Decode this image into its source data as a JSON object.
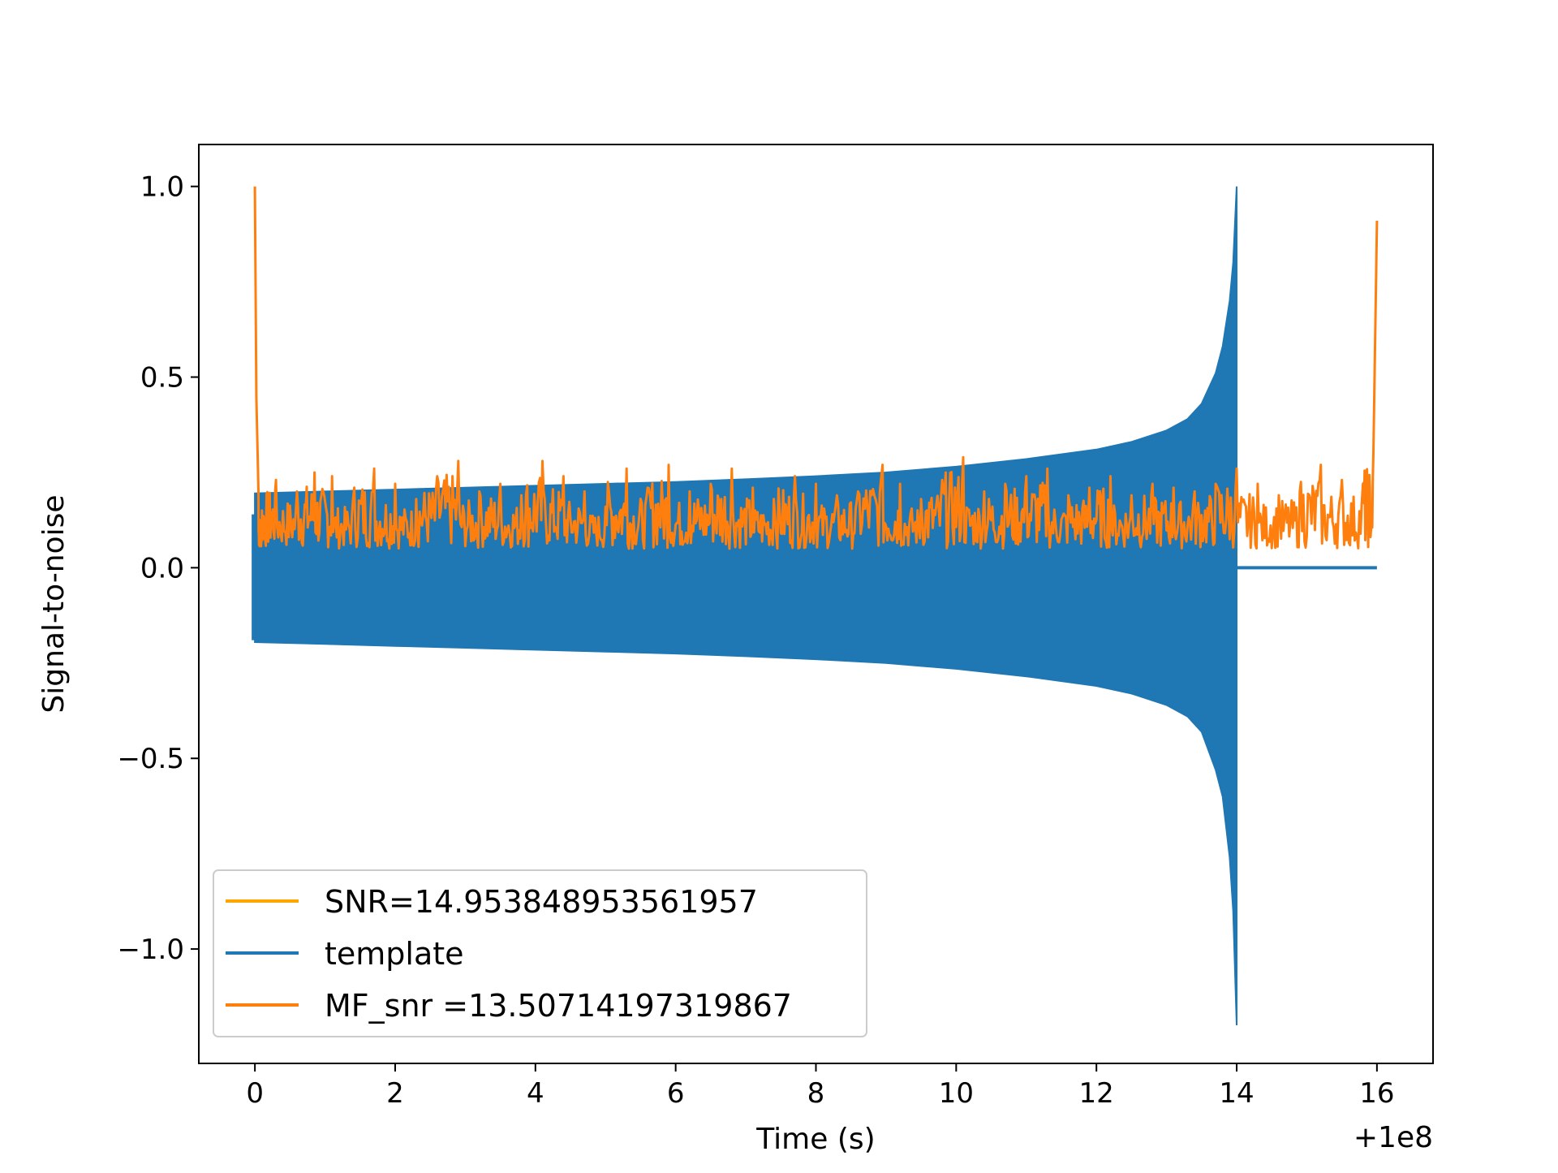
{
  "chart_data": {
    "type": "line",
    "title": "",
    "xlabel": "Time (s)",
    "ylabel": "Signal-to-noise",
    "x_offset_label": "+1e8",
    "xlim": [
      -0.8,
      16.8
    ],
    "ylim": [
      -1.3,
      1.11
    ],
    "xticks": [
      0,
      2,
      4,
      6,
      8,
      10,
      12,
      14,
      16
    ],
    "xtick_labels": [
      "0",
      "2",
      "4",
      "6",
      "8",
      "10",
      "12",
      "14",
      "16"
    ],
    "yticks": [
      1.0,
      0.5,
      0.0,
      -0.5,
      -1.0
    ],
    "ytick_labels": [
      "1.0",
      "0.5",
      "0.0",
      "−0.5",
      "−1.0"
    ],
    "grid": false,
    "legend_position": "lower-left",
    "series": [
      {
        "name": "SNR=14.953848953561957",
        "color": "#ffa500",
        "x": [],
        "y": []
      },
      {
        "name": "template",
        "color": "#1f77b4",
        "kind": "band",
        "x": [
          0.0,
          1,
          2,
          3,
          4,
          5,
          6,
          7,
          8,
          9,
          10,
          11,
          12,
          12.5,
          13,
          13.3,
          13.5,
          13.7,
          13.8,
          13.9,
          13.95,
          14.0
        ],
        "upper": [
          0.195,
          0.2,
          0.205,
          0.21,
          0.215,
          0.22,
          0.225,
          0.232,
          0.24,
          0.25,
          0.265,
          0.285,
          0.31,
          0.33,
          0.36,
          0.39,
          0.43,
          0.51,
          0.58,
          0.7,
          0.8,
          1.0
        ],
        "lower": [
          -0.195,
          -0.2,
          -0.205,
          -0.21,
          -0.215,
          -0.22,
          -0.225,
          -0.232,
          -0.24,
          -0.25,
          -0.265,
          -0.285,
          -0.31,
          -0.33,
          -0.36,
          -0.39,
          -0.43,
          -0.53,
          -0.6,
          -0.76,
          -0.9,
          -1.2
        ],
        "tail_x": [
          14.0,
          16.0
        ],
        "tail_y": [
          0.0,
          0.0
        ],
        "start_spike": [
          0.14,
          -0.19
        ]
      },
      {
        "name": " MF_snr =13.50714197319867",
        "color": "#ff7f0e",
        "x": [
          0.0,
          0.02,
          0.05,
          0.1,
          0.3,
          0.6,
          0.85,
          1.1,
          1.4,
          1.7,
          2.0,
          2.3,
          2.6,
          2.9,
          3.2,
          3.5,
          3.8,
          4.1,
          4.4,
          4.7,
          5.0,
          5.3,
          5.6,
          5.9,
          6.2,
          6.5,
          6.8,
          7.1,
          7.4,
          7.7,
          8.0,
          8.3,
          8.6,
          8.95,
          9.2,
          9.5,
          9.8,
          10.1,
          10.4,
          10.7,
          11.0,
          11.3,
          11.6,
          11.9,
          12.2,
          12.5,
          12.8,
          13.1,
          13.4,
          13.7,
          14.0,
          14.3,
          14.6,
          14.9,
          15.2,
          15.5,
          15.8,
          15.95,
          16.0
        ],
        "y": [
          1.0,
          0.45,
          0.2,
          0.15,
          0.23,
          0.2,
          0.25,
          0.24,
          0.18,
          0.26,
          0.22,
          0.18,
          0.24,
          0.28,
          0.2,
          0.22,
          0.19,
          0.28,
          0.24,
          0.2,
          0.16,
          0.26,
          0.21,
          0.27,
          0.2,
          0.22,
          0.26,
          0.21,
          0.18,
          0.24,
          0.22,
          0.19,
          0.2,
          0.27,
          0.22,
          0.18,
          0.23,
          0.29,
          0.2,
          0.22,
          0.24,
          0.26,
          0.19,
          0.21,
          0.24,
          0.19,
          0.22,
          0.21,
          0.2,
          0.22,
          0.26,
          0.22,
          0.19,
          0.2,
          0.27,
          0.23,
          0.22,
          0.3,
          0.91
        ],
        "baseline": 0.05
      }
    ]
  }
}
